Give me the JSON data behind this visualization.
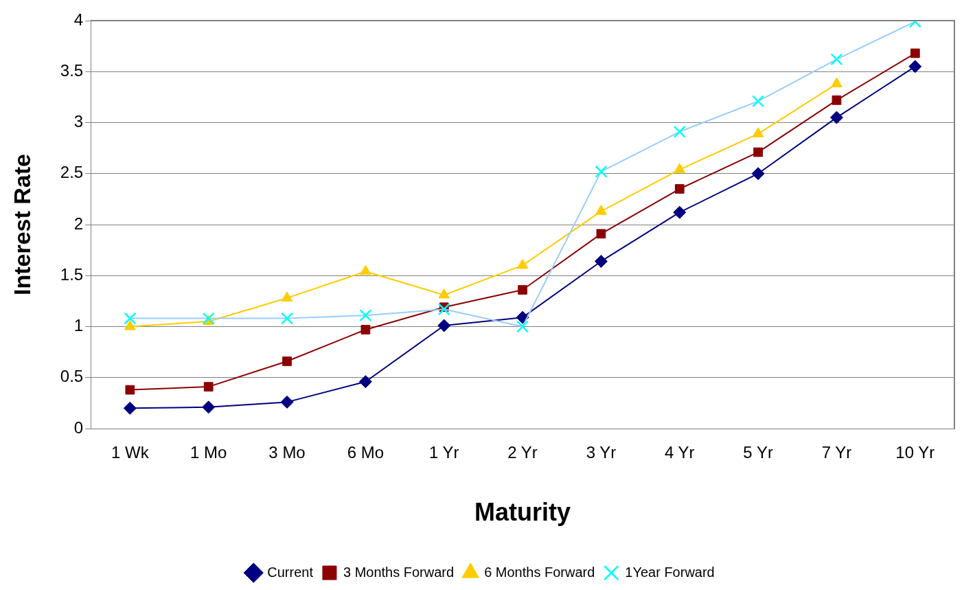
{
  "chart_data": {
    "type": "line",
    "xlabel": "Maturity",
    "ylabel": "Interest Rate",
    "categories": [
      "1 Wk",
      "1 Mo",
      "3 Mo",
      "6 Mo",
      "1 Yr",
      "2 Yr",
      "3 Yr",
      "4 Yr",
      "5 Yr",
      "7 Yr",
      "10 Yr"
    ],
    "series": [
      {
        "name": "Current",
        "color": "#000080",
        "marker": "diamond",
        "values": [
          0.2,
          0.21,
          0.26,
          0.46,
          1.01,
          1.09,
          1.64,
          2.12,
          2.5,
          3.05,
          3.55
        ]
      },
      {
        "name": "3 Months Forward",
        "color": "#8b0000",
        "marker": "square",
        "values": [
          0.38,
          0.41,
          0.66,
          0.97,
          1.19,
          1.36,
          1.91,
          2.35,
          2.71,
          3.22,
          3.68
        ]
      },
      {
        "name": "6 Months Forward",
        "color": "#ffcc00",
        "marker": "triangle",
        "values": [
          1.0,
          1.05,
          1.28,
          1.54,
          1.31,
          1.6,
          2.13,
          2.54,
          2.89,
          3.38,
          null
        ]
      },
      {
        "name": "1Year Forward",
        "color": "#99ccff",
        "marker": "cross",
        "values": [
          1.08,
          1.08,
          1.08,
          1.11,
          1.17,
          1.0,
          2.52,
          2.91,
          3.21,
          3.62,
          3.99
        ]
      }
    ],
    "ylim": [
      0,
      4
    ],
    "yticks": [
      0,
      0.5,
      1,
      1.5,
      2,
      2.5,
      3,
      3.5,
      4
    ],
    "grid": "y",
    "legend": "bottom",
    "line_style": "solid"
  }
}
